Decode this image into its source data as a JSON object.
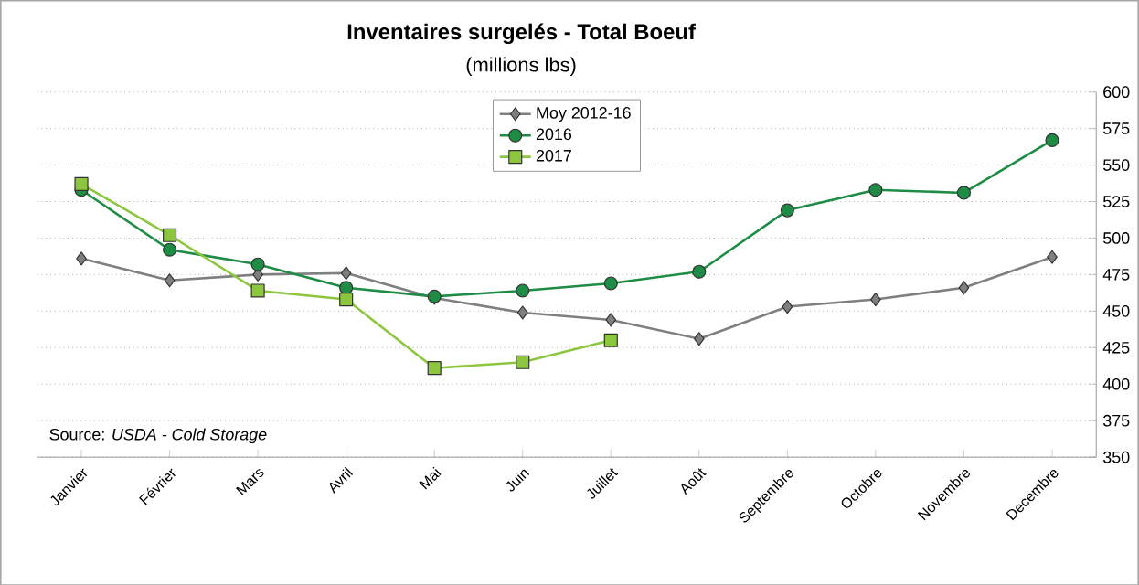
{
  "chart_data": {
    "type": "line",
    "title": "Inventaires surgelés - Total Boeuf",
    "subtitle": "(millions lbs)",
    "categories": [
      "Janvier",
      "Février",
      "Mars",
      "Avril",
      "Mai",
      "Juin",
      "Juillet",
      "Août",
      "Septembre",
      "Octobre",
      "Novembre",
      "Decembre"
    ],
    "series": [
      {
        "name": "Moy 2012-16",
        "color": "#7f7f7f",
        "marker": "diamond",
        "values": [
          486,
          471,
          475,
          476,
          459,
          449,
          444,
          431,
          453,
          458,
          466,
          487
        ]
      },
      {
        "name": "2016",
        "color": "#1e8c45",
        "marker": "circle",
        "values": [
          533,
          492,
          482,
          466,
          460,
          464,
          469,
          477,
          519,
          533,
          531,
          567
        ]
      },
      {
        "name": "2017",
        "color": "#8cc63f",
        "marker": "square",
        "values": [
          537,
          502,
          464,
          458,
          411,
          415,
          430,
          null,
          null,
          null,
          null,
          null
        ]
      }
    ],
    "ylim": [
      350,
      600
    ],
    "yticks": [
      350,
      375,
      400,
      425,
      450,
      475,
      500,
      525,
      550,
      575,
      600
    ],
    "grid": "y",
    "legend": "top",
    "annotations": [
      "Source: *USDA - Cold Storage*"
    ]
  }
}
